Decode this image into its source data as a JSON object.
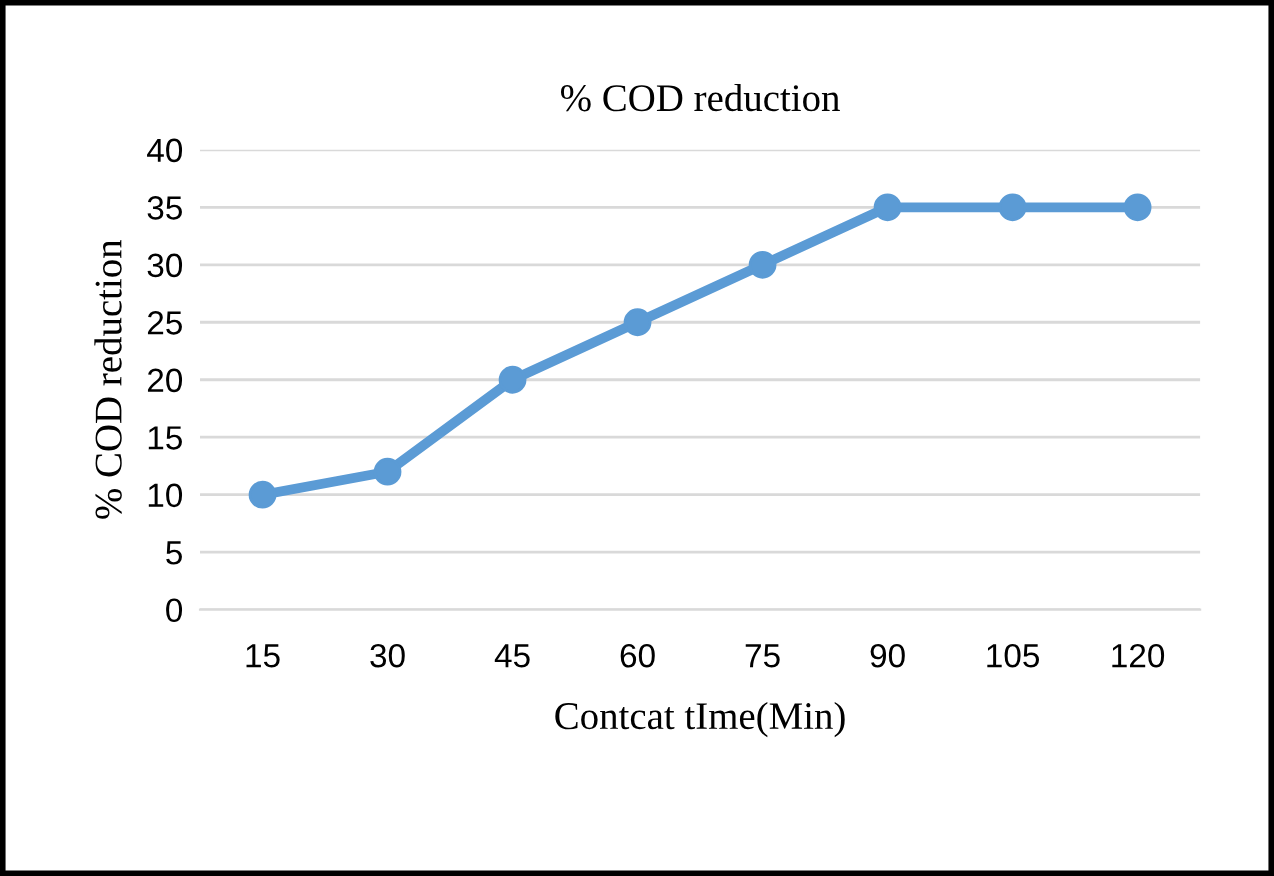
{
  "chart_data": {
    "type": "line",
    "title": "% COD reduction",
    "xlabel": "Contcat tIme(Min)",
    "ylabel": "% COD reduction",
    "categories": [
      "15",
      "30",
      "45",
      "60",
      "75",
      "90",
      "105",
      "120"
    ],
    "series": [
      {
        "color": "#5b9bd5",
        "values": [
          10,
          12,
          20,
          25,
          30,
          35,
          35,
          35
        ]
      }
    ],
    "ylim": [
      0,
      40
    ],
    "yticks": [
      0,
      5,
      10,
      15,
      20,
      25,
      30,
      35,
      40
    ],
    "grid": "y",
    "marker": "circle",
    "line_style": "solid",
    "legend": false
  }
}
